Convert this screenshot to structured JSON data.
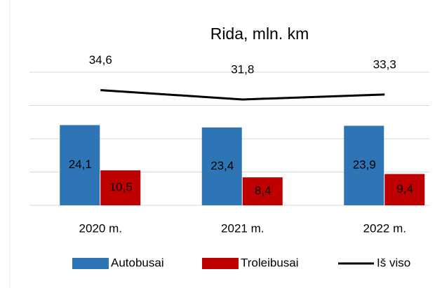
{
  "chart_data": {
    "type": "bar-line",
    "title": "Rida, mln. km",
    "categories": [
      "2020 m.",
      "2021 m.",
      "2022 m."
    ],
    "series": [
      {
        "name": "Autobusai",
        "color": "#2e75b6",
        "type": "bar",
        "values": [
          24.1,
          23.4,
          23.9
        ],
        "value_labels": [
          "24,1",
          "23,4",
          "23,9"
        ]
      },
      {
        "name": "Troleibusai",
        "color": "#c00000",
        "type": "bar",
        "values": [
          10.5,
          8.4,
          9.4
        ],
        "value_labels": [
          "10,5",
          "8,4",
          "9,4"
        ]
      },
      {
        "name": "Iš viso",
        "color": "#000000",
        "type": "line",
        "values": [
          34.6,
          31.8,
          33.3
        ],
        "value_labels": [
          "34,6",
          "31,8",
          "33,3"
        ]
      }
    ],
    "ylim": [
      0,
      40
    ],
    "yticks": [
      0,
      10,
      20,
      30,
      40
    ],
    "grid": true,
    "legend": "bottom"
  }
}
